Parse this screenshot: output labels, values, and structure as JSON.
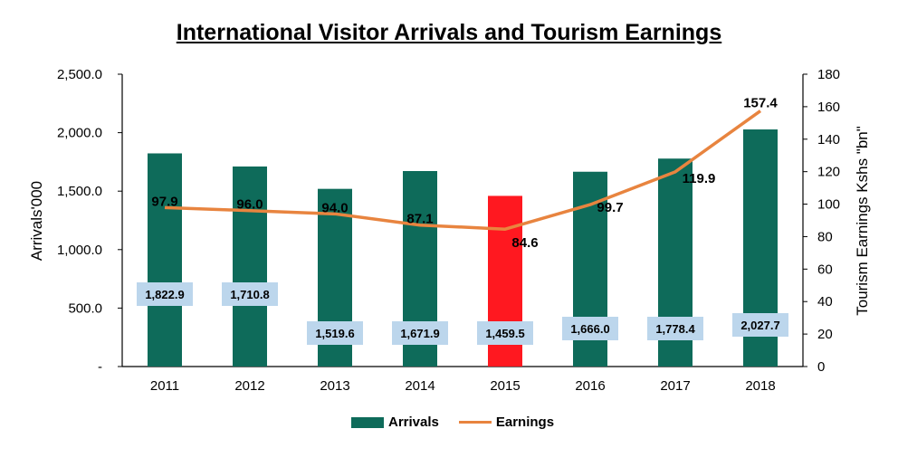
{
  "chart_data": {
    "type": "bar",
    "title": "International Visitor Arrivals and Tourism Earnings",
    "categories": [
      "2011",
      "2012",
      "2013",
      "2014",
      "2015",
      "2016",
      "2017",
      "2018"
    ],
    "series": [
      {
        "name": "Arrivals",
        "type": "bar",
        "axis": "left",
        "values": [
          1822.9,
          1710.8,
          1519.6,
          1671.9,
          1459.5,
          1666.0,
          1778.4,
          2027.7
        ],
        "labels": [
          "1,822.9",
          "1,710.8",
          "1,519.6",
          "1,671.9",
          "1,459.5",
          "1,666.0",
          "1,778.4",
          "2,027.7"
        ],
        "color": "#0e6b5a",
        "highlight": {
          "index": 4,
          "color": "#ff1820"
        }
      },
      {
        "name": "Earnings",
        "type": "line",
        "axis": "right",
        "values": [
          97.9,
          96.0,
          94.0,
          87.1,
          84.6,
          99.7,
          119.9,
          157.4
        ],
        "labels": [
          "97.9",
          "96.0",
          "94.0",
          "87.1",
          "84.6",
          "99.7",
          "119.9",
          "157.4"
        ],
        "color": "#e8843f"
      }
    ],
    "ylabel": "Arrivals'000",
    "ylabel_right": "Tourism Earnings  Kshs \"bn\"",
    "ylim": [
      0,
      2500
    ],
    "ylim_right": [
      0,
      180
    ],
    "yticks": [
      "-",
      "500.0",
      "1,000.0",
      "1,500.0",
      "2,000.0",
      "2,500.0"
    ],
    "yticks_right": [
      "0",
      "20",
      "40",
      "60",
      "80",
      "100",
      "120",
      "140",
      "160",
      "180"
    ],
    "grid": false,
    "legend": "bottom",
    "label_box_color": "#bcd6ec"
  }
}
